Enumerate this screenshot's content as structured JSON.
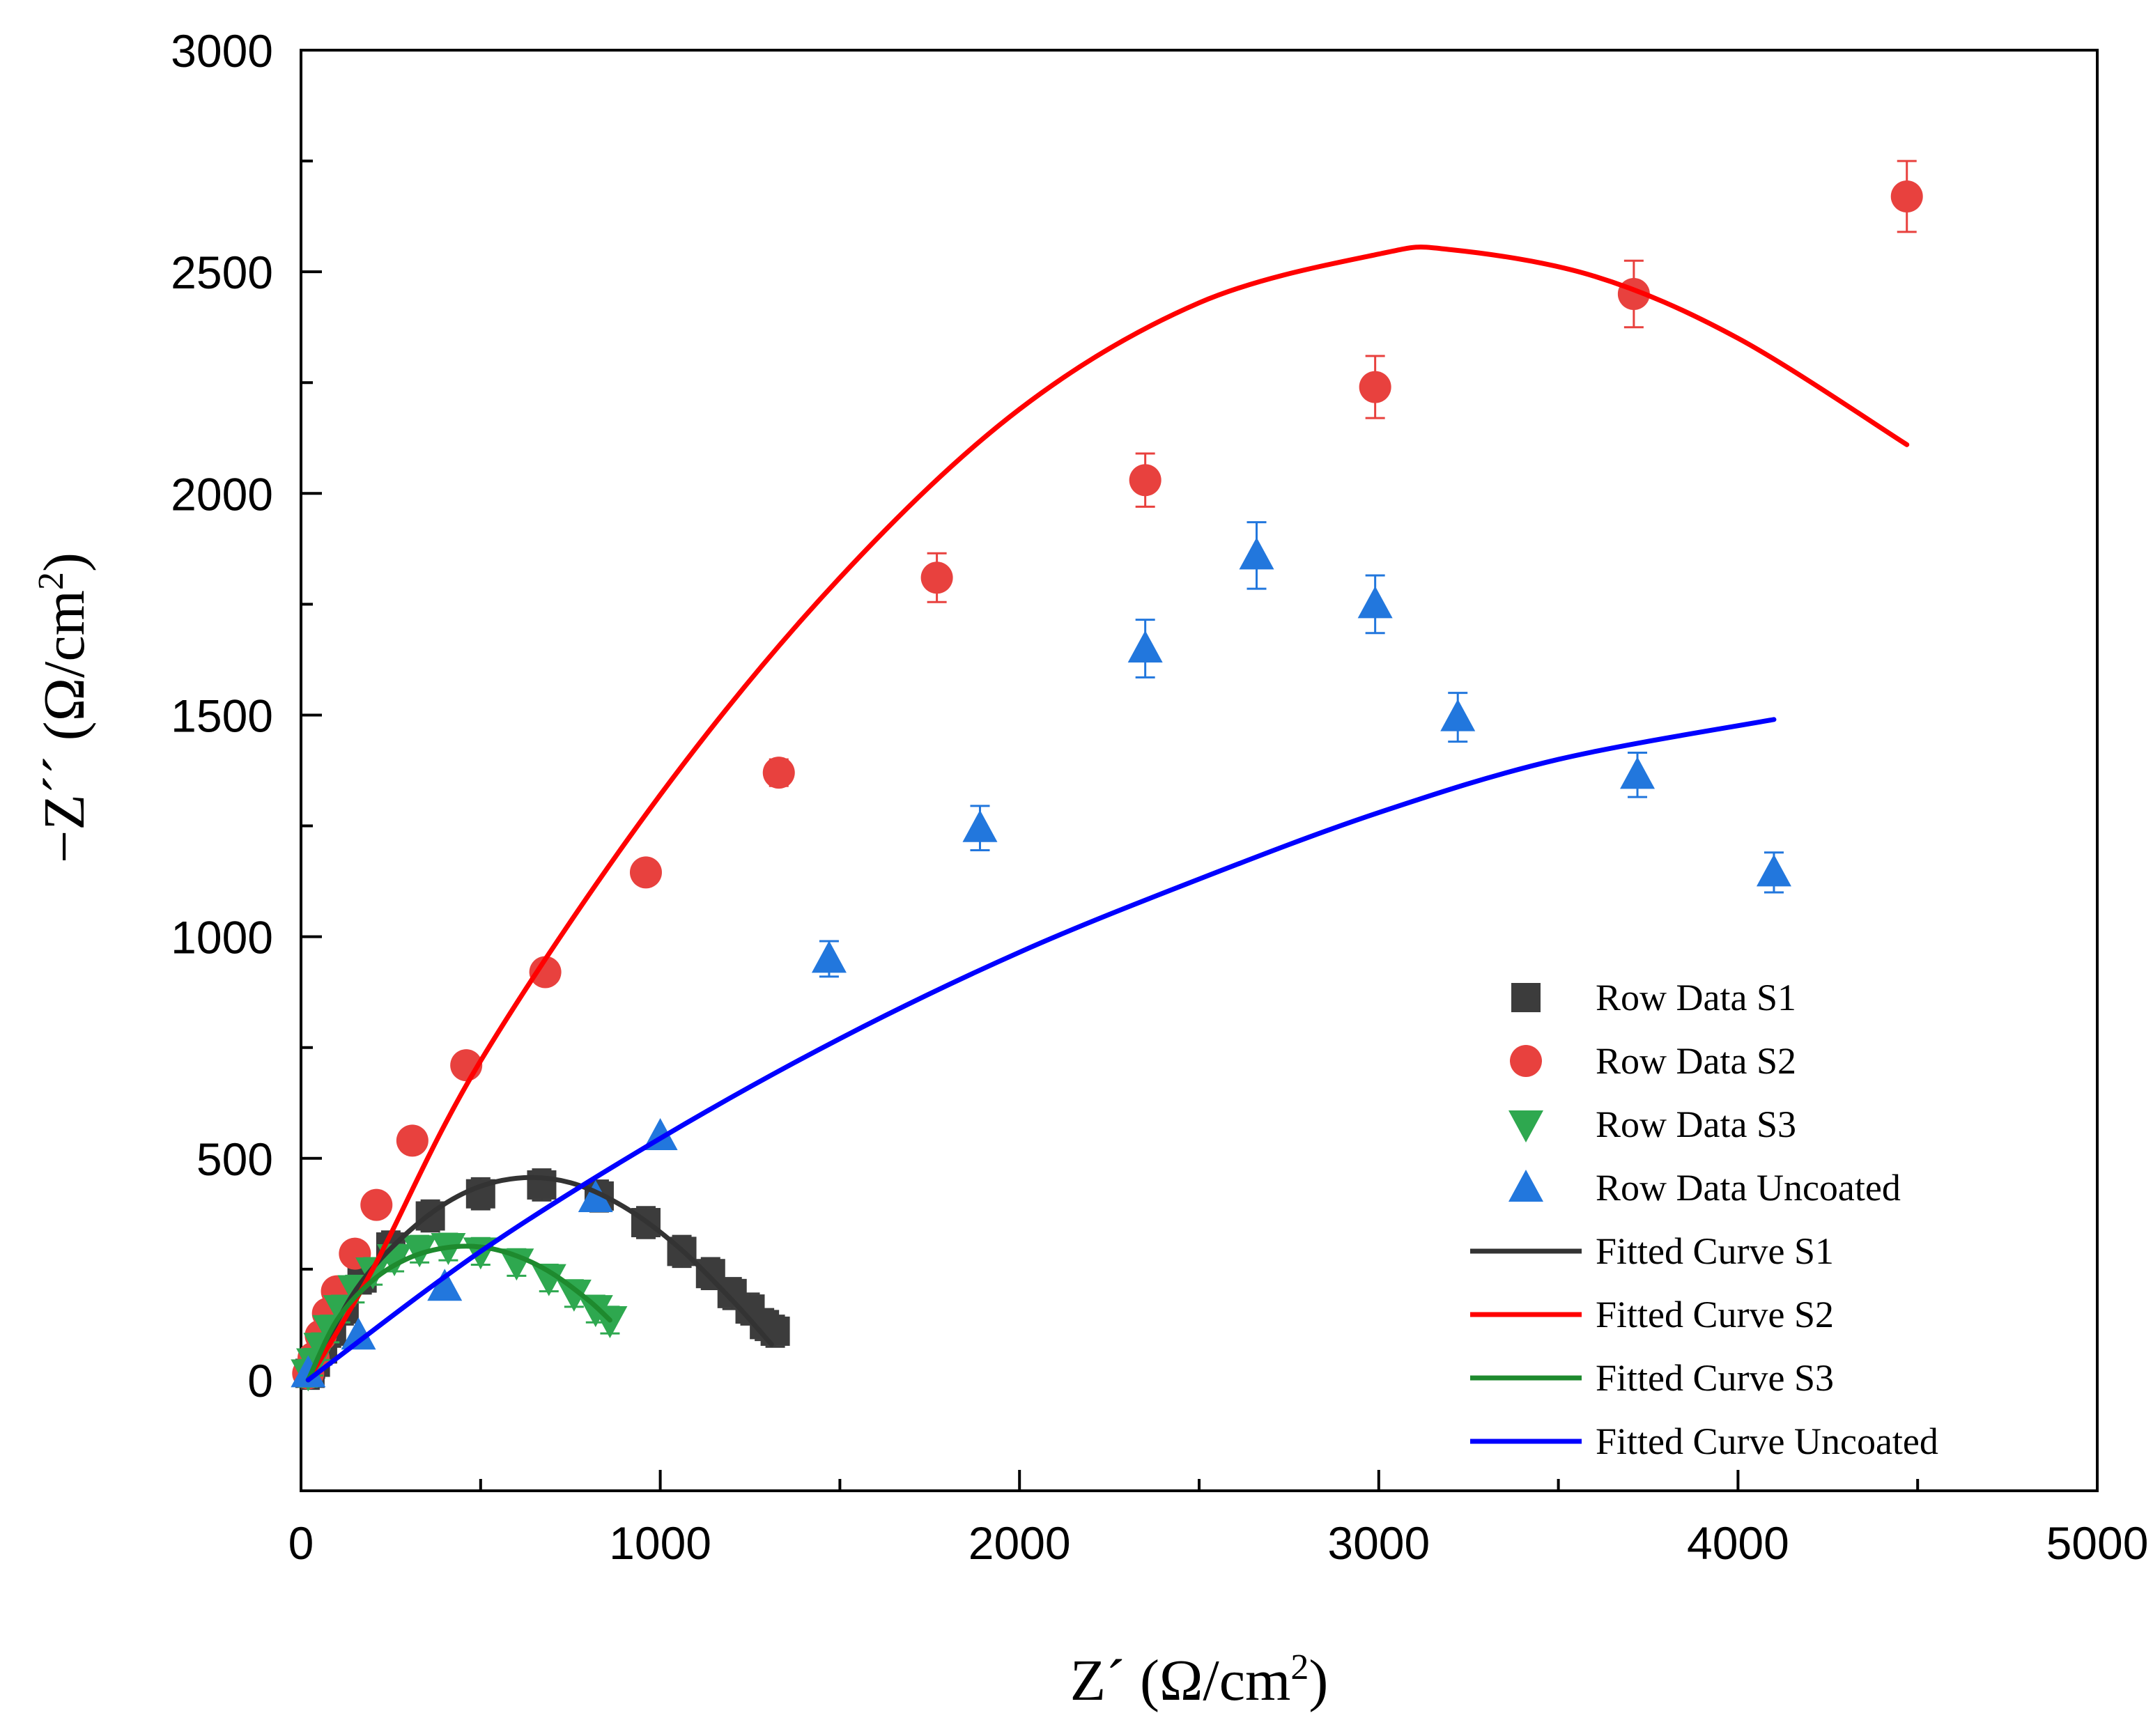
{
  "chart_data": {
    "type": "scatter",
    "title": "",
    "xlabel": "Z´ (Ω/cm²)",
    "xlabel_main": "Z´ (Ω/cm",
    "xlabel_sup": "2",
    "xlabel_end": ")",
    "ylabel": "−Z´´ (Ω/cm²)",
    "ylabel_main": "−Z´´ (Ω/cm",
    "ylabel_sup": "2",
    "ylabel_end": ")",
    "xlim": [
      0,
      5000
    ],
    "ylim": [
      -250,
      3000
    ],
    "xticks": [
      0,
      1000,
      2000,
      3000,
      4000,
      5000
    ],
    "yticks": [
      0,
      500,
      1000,
      1500,
      2000,
      2500,
      3000
    ],
    "grid": false,
    "legend_position": "lower-right",
    "series": [
      {
        "name": "Row Data S1",
        "kind": "scatter",
        "marker": "square",
        "color": "#3c3c3c",
        "error": 35,
        "x": [
          25,
          40,
          60,
          85,
          120,
          170,
          250,
          360,
          500,
          670,
          830,
          960,
          1060,
          1140,
          1200,
          1250,
          1290,
          1320
        ],
        "y": [
          15,
          40,
          70,
          110,
          160,
          230,
          300,
          370,
          420,
          440,
          415,
          355,
          290,
          240,
          195,
          160,
          125,
          110
        ]
      },
      {
        "name": "Row Data S2",
        "kind": "scatter",
        "marker": "circle",
        "color": "#e8413e",
        "x": [
          20,
          35,
          55,
          75,
          100,
          150,
          210,
          310,
          460,
          680,
          960,
          1330,
          1770,
          2350,
          2990,
          3710,
          4470
        ],
        "y": [
          15,
          50,
          100,
          150,
          200,
          285,
          395,
          540,
          710,
          920,
          1145,
          1370,
          1810,
          2030,
          2240,
          2450,
          2670
        ],
        "errors": [
          0,
          0,
          0,
          0,
          0,
          0,
          0,
          0,
          0,
          0,
          0,
          30,
          55,
          60,
          70,
          75,
          80
        ]
      },
      {
        "name": "Row Data S3",
        "kind": "scatter",
        "marker": "triangle-down",
        "color": "#2ea84f",
        "error": 30,
        "x": [
          20,
          35,
          55,
          80,
          110,
          150,
          200,
          260,
          330,
          410,
          500,
          600,
          690,
          760,
          820,
          860
        ],
        "y": [
          15,
          40,
          75,
          115,
          160,
          205,
          245,
          275,
          295,
          300,
          290,
          265,
          230,
          195,
          160,
          135
        ]
      },
      {
        "name": "Row Data Uncoated",
        "kind": "scatter",
        "marker": "triangle-up",
        "color": "#2277dd",
        "x": [
          20,
          160,
          400,
          820,
          1000,
          1470,
          1890,
          2350,
          2660,
          2990,
          3220,
          3720,
          4100
        ],
        "y": [
          15,
          100,
          210,
          410,
          550,
          950,
          1245,
          1650,
          1860,
          1750,
          1495,
          1365,
          1145
        ],
        "errors": [
          0,
          0,
          0,
          0,
          0,
          40,
          50,
          65,
          75,
          65,
          55,
          50,
          45
        ]
      },
      {
        "name": "Fitted Curve S1",
        "kind": "line",
        "color": "#333333",
        "x": [
          20,
          150,
          300,
          450,
          600,
          750,
          900,
          1050,
          1200,
          1310
        ],
        "y": [
          0,
          200,
          335,
          420,
          455,
          445,
          390,
          300,
          180,
          80
        ]
      },
      {
        "name": "Fitted Curve S2",
        "kind": "line",
        "color": "#ff0000",
        "x": [
          20,
          200,
          500,
          1000,
          1500,
          2000,
          2500,
          3000,
          3200,
          3600,
          4000,
          4470
        ],
        "y": [
          0,
          250,
          720,
          1320,
          1810,
          2190,
          2430,
          2540,
          2550,
          2490,
          2350,
          2110
        ]
      },
      {
        "name": "Fitted Curve S3",
        "kind": "line",
        "color": "#1e8a2e",
        "x": [
          20,
          100,
          200,
          300,
          400,
          500,
          600,
          700,
          800,
          860
        ],
        "y": [
          0,
          135,
          225,
          275,
          298,
          300,
          280,
          240,
          180,
          135
        ]
      },
      {
        "name": "Fitted Curve Uncoated",
        "kind": "line",
        "color": "#0000ff",
        "x": [
          20,
          500,
          1000,
          1500,
          2000,
          2500,
          3000,
          3500,
          4100
        ],
        "y": [
          0,
          290,
          545,
          770,
          965,
          1130,
          1280,
          1400,
          1490
        ]
      }
    ]
  }
}
